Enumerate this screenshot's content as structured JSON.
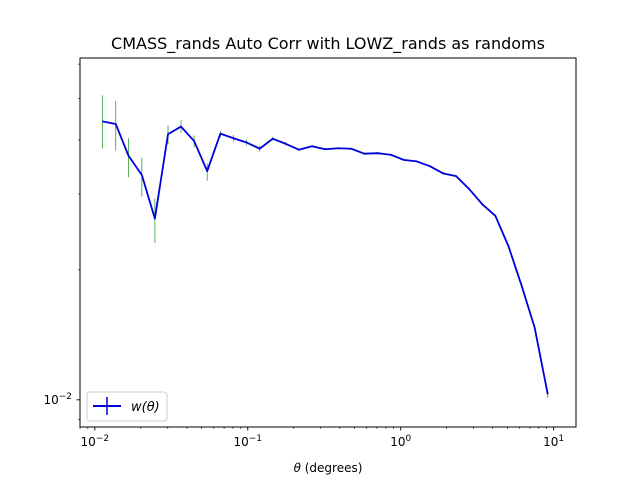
{
  "chart_data": {
    "type": "line",
    "title": "CMASS_rands Auto Corr with LOWZ_rands as randoms",
    "xlabel_symbol": "θ",
    "xlabel_unit": " (degrees)",
    "ylabel": "",
    "x_scale": "log",
    "y_scale": "log",
    "xlim": [
      0.008,
      14
    ],
    "ylim": [
      0.00865,
      0.062
    ],
    "x_ticks": [
      {
        "value": 0.01,
        "base": "10",
        "exp": "−2"
      },
      {
        "value": 0.1,
        "base": "10",
        "exp": "−1"
      },
      {
        "value": 1,
        "base": "10",
        "exp": "0"
      },
      {
        "value": 10,
        "base": "10",
        "exp": "1"
      }
    ],
    "y_ticks": [
      {
        "value": 0.01,
        "base": "10",
        "exp": "−2"
      }
    ],
    "grid": false,
    "legend_position": "lower-left",
    "series": [
      {
        "name_symbol": "w(θ)",
        "color": "#0000dd",
        "error_color": "#2ca02c",
        "x": [
          0.0112,
          0.0137,
          0.0166,
          0.0203,
          0.0247,
          0.0301,
          0.0366,
          0.0446,
          0.0543,
          0.0662,
          0.0806,
          0.0982,
          0.1196,
          0.1456,
          0.1774,
          0.216,
          0.2631,
          0.3205,
          0.3903,
          0.4754,
          0.579,
          0.7052,
          0.8589,
          1.0461,
          1.2741,
          1.5518,
          1.89,
          2.302,
          2.804,
          3.415,
          4.159,
          5.066,
          6.17,
          7.515,
          9.153
        ],
        "y": [
          0.0442,
          0.0436,
          0.0368,
          0.0332,
          0.0263,
          0.0413,
          0.043,
          0.0398,
          0.0339,
          0.0414,
          0.0404,
          0.0395,
          0.0382,
          0.0403,
          0.0392,
          0.038,
          0.0387,
          0.0381,
          0.0383,
          0.0382,
          0.0372,
          0.0373,
          0.037,
          0.036,
          0.0357,
          0.0348,
          0.0335,
          0.033,
          0.0308,
          0.0284,
          0.0267,
          0.0227,
          0.0184,
          0.0147,
          0.0103
        ],
        "err_low": [
          0.0382,
          0.0378,
          0.0328,
          0.0296,
          0.0231,
          0.0391,
          0.0416,
          0.0385,
          0.0322,
          0.0406,
          0.0397,
          0.0389,
          0.0376,
          0.0399,
          0.0389,
          0.0378,
          0.0385,
          0.0379,
          0.0381,
          0.038,
          0.037,
          0.0371,
          0.0368,
          0.0358,
          0.0355,
          0.0346,
          0.0333,
          0.0328,
          0.0306,
          0.0282,
          0.0265,
          0.0225,
          0.0182,
          0.0145,
          0.0101
        ],
        "err_high": [
          0.0508,
          0.0493,
          0.0404,
          0.0364,
          0.0293,
          0.0433,
          0.0445,
          0.041,
          0.0353,
          0.042,
          0.0411,
          0.0401,
          0.0388,
          0.0407,
          0.0396,
          0.0383,
          0.039,
          0.0384,
          0.0385,
          0.0384,
          0.0374,
          0.0375,
          0.0372,
          0.0362,
          0.0359,
          0.035,
          0.0337,
          0.0332,
          0.031,
          0.0286,
          0.0269,
          0.0229,
          0.0186,
          0.0149,
          0.0105
        ]
      }
    ]
  }
}
